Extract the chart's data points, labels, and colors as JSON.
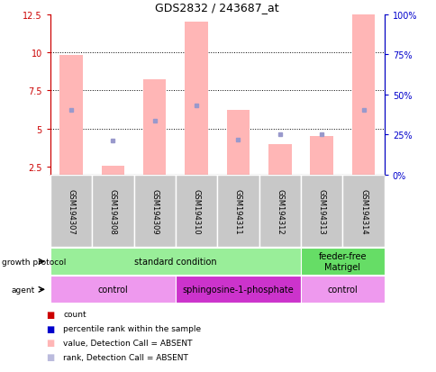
{
  "title": "GDS2832 / 243687_at",
  "samples": [
    "GSM194307",
    "GSM194308",
    "GSM194309",
    "GSM194310",
    "GSM194311",
    "GSM194312",
    "GSM194313",
    "GSM194314"
  ],
  "pink_bar_values": [
    9.8,
    2.55,
    8.2,
    12.0,
    6.2,
    4.0,
    4.5,
    12.5
  ],
  "blue_square_values": [
    6.2,
    4.2,
    5.5,
    6.5,
    4.3,
    4.6,
    4.6,
    6.2
  ],
  "ylim_left": [
    2.0,
    12.5
  ],
  "ylim_right": [
    0,
    100
  ],
  "yticks_left": [
    2.5,
    5.0,
    7.5,
    10.0,
    12.5
  ],
  "yticks_right": [
    0,
    25,
    50,
    75,
    100
  ],
  "ytick_labels_left": [
    "2.5",
    "5",
    "7.5",
    "10",
    "12.5"
  ],
  "ytick_labels_right": [
    "0%",
    "25%",
    "50%",
    "75%",
    "100%"
  ],
  "pink_bar_color": "#FFB6B6",
  "blue_square_color": "#9999CC",
  "bar_bottom": 2.0,
  "growth_protocol_segments": [
    {
      "text": "standard condition",
      "start": 0,
      "end": 6,
      "color": "#99EE99"
    },
    {
      "text": "feeder-free\nMatrigel",
      "start": 6,
      "end": 8,
      "color": "#66DD66"
    }
  ],
  "agent_segments": [
    {
      "text": "control",
      "start": 0,
      "end": 3,
      "color": "#EE99EE"
    },
    {
      "text": "sphingosine-1-phosphate",
      "start": 3,
      "end": 6,
      "color": "#CC33CC"
    },
    {
      "text": "control",
      "start": 6,
      "end": 8,
      "color": "#EE99EE"
    }
  ],
  "legend_colors": [
    "#CC0000",
    "#0000CC",
    "#FFB6B6",
    "#BBBBDD"
  ],
  "legend_labels": [
    "count",
    "percentile rank within the sample",
    "value, Detection Call = ABSENT",
    "rank, Detection Call = ABSENT"
  ],
  "bg_color": "#FFFFFF",
  "left_axis_color": "#CC0000",
  "right_axis_color": "#0000CC"
}
